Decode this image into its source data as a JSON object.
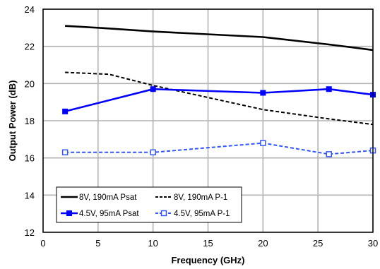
{
  "chart_data": {
    "type": "line",
    "title": "",
    "xlabel": "Frequency (GHz)",
    "ylabel": "Output Power (dB)",
    "xlim": [
      0,
      30
    ],
    "ylim": [
      12,
      24
    ],
    "x_ticks": [
      "0",
      "5",
      "10",
      "15",
      "20",
      "25",
      "30"
    ],
    "y_ticks": [
      "12",
      "14",
      "16",
      "18",
      "20",
      "22",
      "24"
    ],
    "grid": true,
    "legend_position": "bottom-left",
    "series": [
      {
        "name": "8V, 190mA Psat",
        "color": "#000000",
        "dash": "solid",
        "marker": "none",
        "x": [
          2,
          5,
          10,
          20,
          26,
          30
        ],
        "y": [
          23.1,
          23.0,
          22.8,
          22.5,
          22.1,
          21.8
        ]
      },
      {
        "name": "8V, 190mA P-1",
        "color": "#000000",
        "dash": "dashed",
        "marker": "none",
        "x": [
          2,
          6,
          10,
          20,
          26,
          30
        ],
        "y": [
          20.6,
          20.5,
          19.9,
          18.6,
          18.1,
          17.8
        ]
      },
      {
        "name": "4.5V, 95mA Psat",
        "color": "#0000ff",
        "dash": "solid",
        "marker": "square",
        "x": [
          2,
          10,
          20,
          26,
          30
        ],
        "y": [
          18.5,
          19.7,
          19.5,
          19.7,
          19.4
        ]
      },
      {
        "name": "4.5V, 95mA P-1",
        "color": "#3355ff",
        "dash": "dashed",
        "marker": "square-open",
        "x": [
          2,
          10,
          20,
          26,
          30
        ],
        "y": [
          16.3,
          16.3,
          16.8,
          16.2,
          16.4
        ]
      }
    ]
  }
}
